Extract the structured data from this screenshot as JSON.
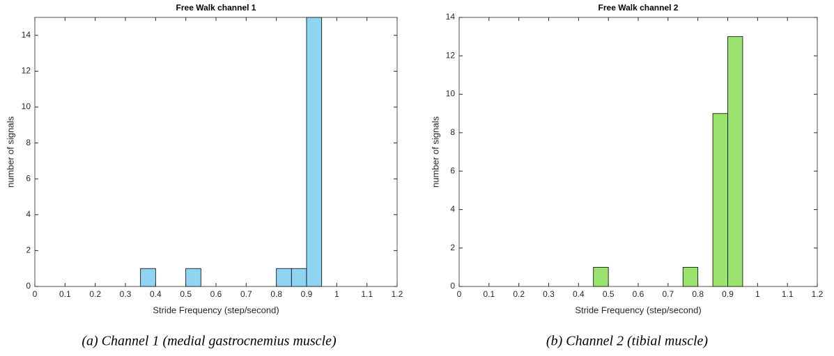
{
  "chart_data": [
    {
      "type": "histogram",
      "title": "Free Walk channel 1",
      "x_label": "Stride Frequency (step/second)",
      "y_label": "number of signals",
      "bins": [
        0.35,
        0.4,
        0.45,
        0.5,
        0.55,
        0.6,
        0.65,
        0.7,
        0.75,
        0.8,
        0.85,
        0.9,
        0.95
      ],
      "values": [
        1,
        0,
        0,
        1,
        0,
        0,
        0,
        0,
        0,
        1,
        1,
        15
      ],
      "color": "#8fd4f2",
      "xlim": [
        0,
        1.2
      ],
      "xticks": [
        0,
        0.1,
        0.2,
        0.3,
        0.4,
        0.5,
        0.6,
        0.7,
        0.8,
        0.9,
        1,
        1.1,
        1.2
      ],
      "ylim": [
        0,
        15
      ],
      "yticks": [
        0,
        2,
        4,
        6,
        8,
        10,
        12,
        14
      ],
      "caption": "(a)  Channel 1 (medial gastrocnemius muscle)"
    },
    {
      "type": "histogram",
      "title": "Free Walk channel 2",
      "x_label": "Stride Frequency (step/second)",
      "y_label": "number of signals",
      "bins": [
        0.45,
        0.5,
        0.55,
        0.6,
        0.65,
        0.7,
        0.75,
        0.8,
        0.85,
        0.9,
        0.95
      ],
      "values": [
        1,
        0,
        0,
        0,
        0,
        0,
        1,
        0,
        9,
        13
      ],
      "color": "#9be36f",
      "xlim": [
        0,
        1.2
      ],
      "xticks": [
        0,
        0.1,
        0.2,
        0.3,
        0.4,
        0.5,
        0.6,
        0.7,
        0.8,
        0.9,
        1,
        1.1,
        1.2
      ],
      "ylim": [
        0,
        14
      ],
      "yticks": [
        0,
        2,
        4,
        6,
        8,
        10,
        12,
        14
      ],
      "caption": "(b) Channel 2 (tibial muscle)"
    }
  ]
}
